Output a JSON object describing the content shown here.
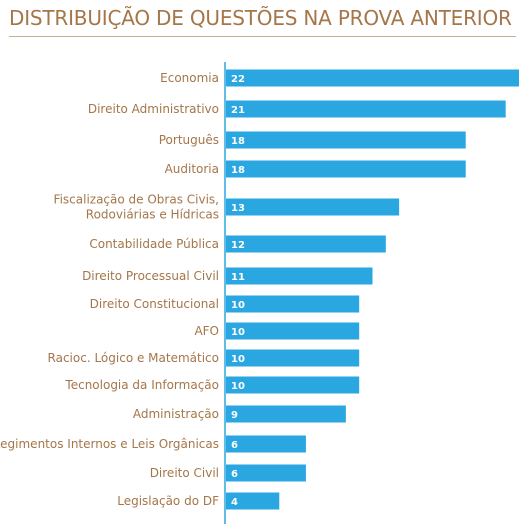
{
  "chart_data": {
    "type": "bar",
    "orientation": "horizontal",
    "title": "DISTRIBUIÇÃO DE QUESTÕES NA PROVA ANTERIOR",
    "xlabel": "",
    "ylabel": "",
    "xlim": [
      0,
      22
    ],
    "grid": false,
    "legend": "none",
    "bar_color": "#2aa7e1",
    "text_color": "#a4764a",
    "categories": [
      [
        "Economia"
      ],
      [
        "Direito Administrativo"
      ],
      [
        "Português"
      ],
      [
        "Auditoria"
      ],
      [
        "Fiscalização de Obras Civis,",
        "Rodoviárias e Hídricas"
      ],
      [
        "Contabilidade Pública"
      ],
      [
        "Direito Processual Civil"
      ],
      [
        "Direito Constitucional"
      ],
      [
        "AFO"
      ],
      [
        "Racioc. Lógico e Matemático"
      ],
      [
        "Tecnologia da Informação"
      ],
      [
        "Administração"
      ],
      [
        "Regimentos Internos e Leis Orgânicas"
      ],
      [
        "Direito Civil"
      ],
      [
        "Legislação do DF"
      ]
    ],
    "values": [
      22,
      21,
      18,
      18,
      13,
      12,
      11,
      10,
      10,
      10,
      10,
      9,
      6,
      6,
      4
    ]
  }
}
